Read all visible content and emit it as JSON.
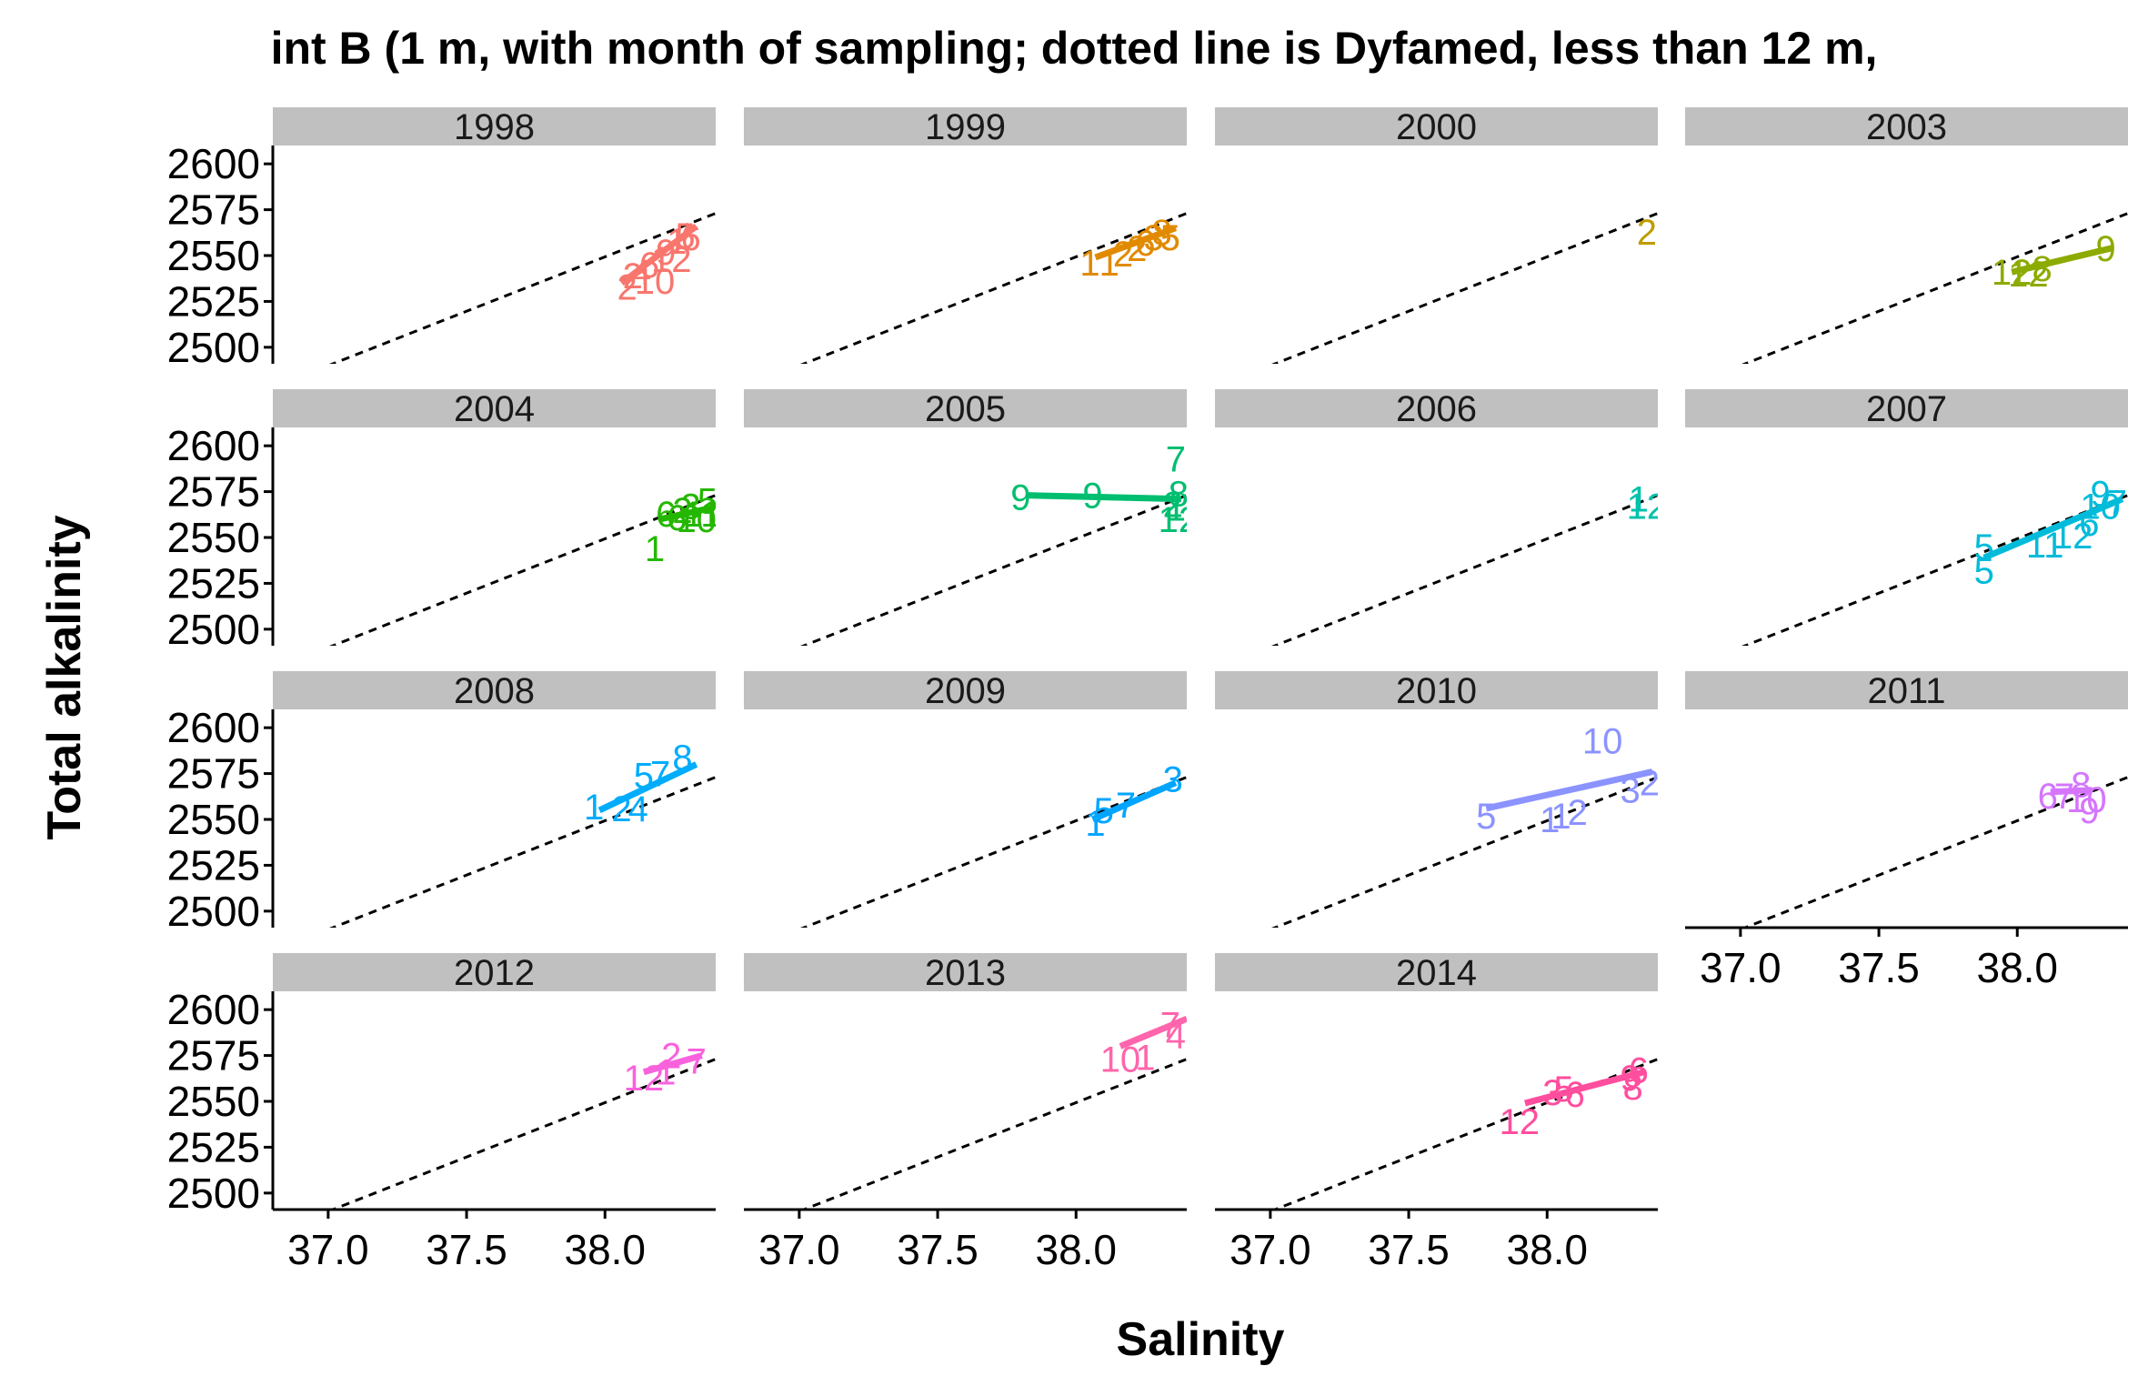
{
  "chart_data": {
    "type": "scatter",
    "title": "int B (1 m, with month of sampling; dotted line is Dyfamed, less than 12 m,",
    "xlabel": "Salinity",
    "ylabel": "Total alkalinity",
    "xlim": [
      36.8,
      38.4
    ],
    "ylim": [
      2491,
      2610
    ],
    "xticks": [
      "37.0",
      "37.5",
      "38.0"
    ],
    "yticks": [
      "2500",
      "2525",
      "2550",
      "2575",
      "2600"
    ],
    "reference_line": {
      "style": "dotted",
      "color": "#000000",
      "x": [
        37.0,
        38.45
      ],
      "y": [
        2490,
        2576
      ]
    },
    "strip_color": "#c0c0c0",
    "panels": [
      {
        "year": "1998",
        "color": "#F8766D",
        "points": [
          [
            38.08,
            2533,
            "2"
          ],
          [
            38.1,
            2539,
            "2"
          ],
          [
            38.13,
            2541,
            "4"
          ],
          [
            38.16,
            2545,
            "6"
          ],
          [
            38.22,
            2552,
            "9"
          ],
          [
            38.26,
            2558,
            "1"
          ],
          [
            38.29,
            2561,
            "5"
          ],
          [
            38.31,
            2560,
            "6"
          ],
          [
            38.18,
            2536,
            "10"
          ],
          [
            38.24,
            2548,
            "12"
          ]
        ],
        "fit": [
          [
            38.06,
            2535
          ],
          [
            38.33,
            2566
          ]
        ]
      },
      {
        "year": "1999",
        "color": "#E18A00",
        "points": [
          [
            38.05,
            2546,
            "1"
          ],
          [
            38.12,
            2546,
            "1"
          ],
          [
            38.17,
            2551,
            "2"
          ],
          [
            38.22,
            2554,
            "2"
          ],
          [
            38.25,
            2557,
            "6"
          ],
          [
            38.28,
            2560,
            "3"
          ],
          [
            38.31,
            2563,
            "8"
          ],
          [
            38.34,
            2560,
            "5"
          ]
        ],
        "fit": [
          [
            38.07,
            2549
          ],
          [
            38.36,
            2565
          ]
        ]
      },
      {
        "year": "2000",
        "color": "#BE9C00",
        "points": [
          [
            38.36,
            2563,
            "2"
          ]
        ],
        "fit": []
      },
      {
        "year": "2003",
        "color": "#8CAB00",
        "points": [
          [
            37.98,
            2541,
            "12"
          ],
          [
            38.04,
            2540,
            "12"
          ],
          [
            38.09,
            2543,
            "8"
          ],
          [
            38.32,
            2554,
            "9"
          ]
        ],
        "fit": [
          [
            37.98,
            2541
          ],
          [
            38.34,
            2554
          ]
        ]
      },
      {
        "year": "2004",
        "color": "#24B700",
        "points": [
          [
            38.18,
            2544,
            "1"
          ],
          [
            38.22,
            2563,
            "6"
          ],
          [
            38.26,
            2561,
            "6"
          ],
          [
            38.28,
            2565,
            "2"
          ],
          [
            38.31,
            2567,
            "3"
          ],
          [
            38.33,
            2560,
            "10"
          ],
          [
            38.35,
            2563,
            "11"
          ],
          [
            38.37,
            2570,
            "5"
          ]
        ],
        "fit": [
          [
            38.2,
            2560
          ],
          [
            38.38,
            2566
          ]
        ]
      },
      {
        "year": "2005",
        "color": "#00BE70",
        "points": [
          [
            37.8,
            2572,
            "9"
          ],
          [
            38.06,
            2573,
            "9"
          ],
          [
            38.36,
            2593,
            "7"
          ],
          [
            38.37,
            2574,
            "8"
          ],
          [
            38.36,
            2566,
            "1"
          ],
          [
            38.35,
            2568,
            "2"
          ],
          [
            38.37,
            2560,
            "12"
          ]
        ],
        "fit": [
          [
            37.82,
            2573
          ],
          [
            38.38,
            2571
          ]
        ]
      },
      {
        "year": "2006",
        "color": "#00C1AB",
        "points": [
          [
            38.33,
            2571,
            "1"
          ],
          [
            38.36,
            2567,
            "12"
          ]
        ],
        "fit": []
      },
      {
        "year": "2007",
        "color": "#00BBDA",
        "points": [
          [
            37.88,
            2545,
            "5"
          ],
          [
            37.88,
            2532,
            "5"
          ],
          [
            38.1,
            2546,
            "11"
          ],
          [
            38.2,
            2551,
            "12"
          ],
          [
            38.26,
            2558,
            "6"
          ],
          [
            38.3,
            2574,
            "9"
          ],
          [
            38.3,
            2567,
            "10"
          ],
          [
            38.36,
            2569,
            "7"
          ]
        ],
        "fit": [
          [
            37.88,
            2539
          ],
          [
            38.38,
            2571
          ]
        ]
      },
      {
        "year": "2008",
        "color": "#00ACFC",
        "points": [
          [
            37.96,
            2557,
            "1"
          ],
          [
            38.06,
            2556,
            "2"
          ],
          [
            38.12,
            2556,
            "4"
          ],
          [
            38.14,
            2574,
            "5"
          ],
          [
            38.2,
            2575,
            "7"
          ],
          [
            38.28,
            2584,
            "8"
          ]
        ],
        "fit": [
          [
            37.98,
            2555
          ],
          [
            38.33,
            2580
          ]
        ]
      },
      {
        "year": "2009",
        "color": "#00A5FF",
        "points": [
          [
            38.07,
            2548,
            "1"
          ],
          [
            38.1,
            2555,
            "5"
          ],
          [
            38.18,
            2558,
            "7"
          ],
          [
            38.35,
            2572,
            "3"
          ]
        ],
        "fit": [
          [
            38.06,
            2550
          ],
          [
            38.36,
            2570
          ]
        ]
      },
      {
        "year": "2010",
        "color": "#8B93FF",
        "points": [
          [
            37.78,
            2552,
            "5"
          ],
          [
            38.01,
            2550,
            "1"
          ],
          [
            38.05,
            2552,
            "1"
          ],
          [
            38.11,
            2554,
            "2"
          ],
          [
            38.2,
            2593,
            "10"
          ],
          [
            38.3,
            2566,
            "3"
          ],
          [
            38.37,
            2570,
            "2"
          ]
        ],
        "fit": [
          [
            37.78,
            2556
          ],
          [
            38.38,
            2576
          ]
        ]
      },
      {
        "year": "2011",
        "color": "#D575FE",
        "points": [
          [
            38.11,
            2563,
            "6"
          ],
          [
            38.17,
            2563,
            "7"
          ],
          [
            38.23,
            2569,
            "8"
          ],
          [
            38.25,
            2561,
            "10"
          ],
          [
            38.26,
            2555,
            "9"
          ]
        ],
        "fit": [
          [
            38.12,
            2565
          ],
          [
            38.27,
            2566
          ]
        ]
      },
      {
        "year": "2012",
        "color": "#F962DD",
        "points": [
          [
            38.14,
            2563,
            "12"
          ],
          [
            38.22,
            2566,
            "1"
          ],
          [
            38.24,
            2575,
            "2"
          ],
          [
            38.33,
            2572,
            "7"
          ]
        ],
        "fit": [
          [
            38.14,
            2566
          ],
          [
            38.35,
            2575
          ]
        ]
      },
      {
        "year": "2013",
        "color": "#FF65AC",
        "points": [
          [
            38.16,
            2573,
            "10"
          ],
          [
            38.25,
            2574,
            "1"
          ],
          [
            38.34,
            2592,
            "7"
          ],
          [
            38.36,
            2586,
            "4"
          ]
        ],
        "fit": [
          [
            38.16,
            2580
          ],
          [
            38.4,
            2595
          ]
        ]
      },
      {
        "year": "2014",
        "color": "#FF4E9E",
        "points": [
          [
            37.9,
            2539,
            "12"
          ],
          [
            38.02,
            2555,
            "3"
          ],
          [
            38.06,
            2557,
            "5"
          ],
          [
            38.1,
            2554,
            "6"
          ],
          [
            38.3,
            2563,
            "9"
          ],
          [
            38.31,
            2558,
            "8"
          ],
          [
            38.33,
            2567,
            "6"
          ]
        ],
        "fit": [
          [
            37.92,
            2549
          ],
          [
            38.35,
            2566
          ]
        ]
      }
    ]
  }
}
